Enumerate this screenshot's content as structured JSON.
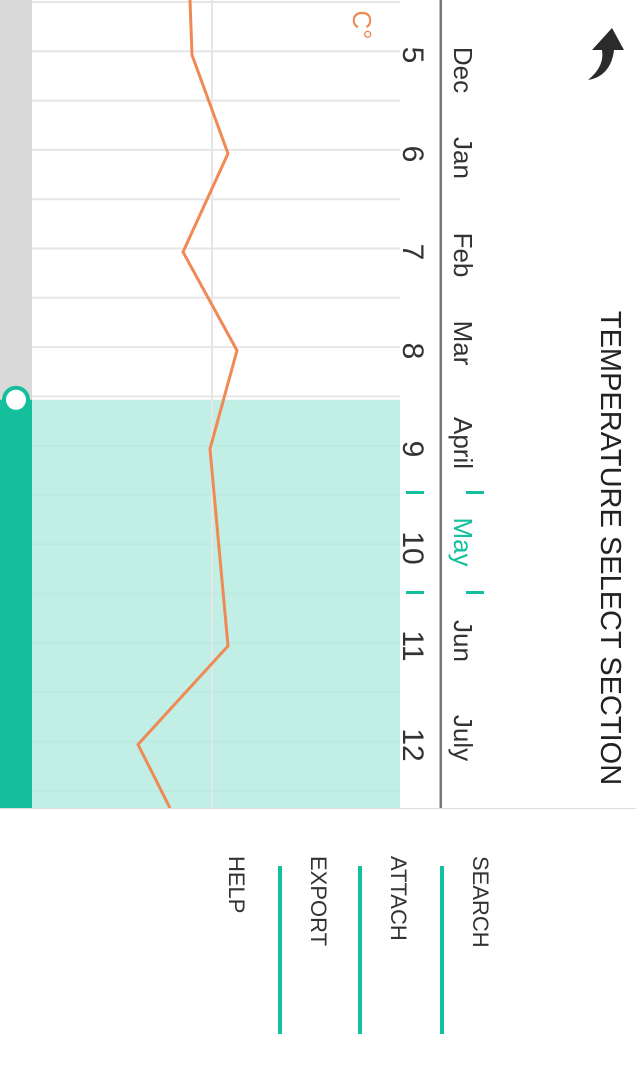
{
  "header": {
    "title": "TEMPERATURE SELECT SECTION",
    "back_icon": "back-arrow-icon"
  },
  "timeline": {
    "months": [
      "Dec",
      "Jan",
      "Feb",
      "Mar",
      "April",
      "May",
      "Jun",
      "July"
    ],
    "selected_month": "May",
    "numbers": [
      "5",
      "6",
      "7",
      "8",
      "9",
      "10",
      "11",
      "12"
    ]
  },
  "chart_data": {
    "type": "line",
    "x": [
      5,
      6,
      7,
      8,
      9,
      10,
      11,
      12
    ],
    "unit_label": "C°",
    "series": [
      {
        "values": [
          19.5,
          19.9,
          19.4,
          20.0,
          19.7,
          19.8,
          19.9,
          18.9
        ]
      }
    ],
    "selection": {
      "from": 8.5,
      "to": 12.5
    },
    "colors": {
      "line": "#F08A54",
      "selection": "#B2EADF",
      "handle": "#13BF9C"
    }
  },
  "menu": {
    "items": [
      "SEARCH",
      "ATTACH",
      "EXPORT",
      "HELP"
    ]
  },
  "colors": {
    "accent": "#13BF9C",
    "line": "#F08A54",
    "text": "#333333"
  }
}
